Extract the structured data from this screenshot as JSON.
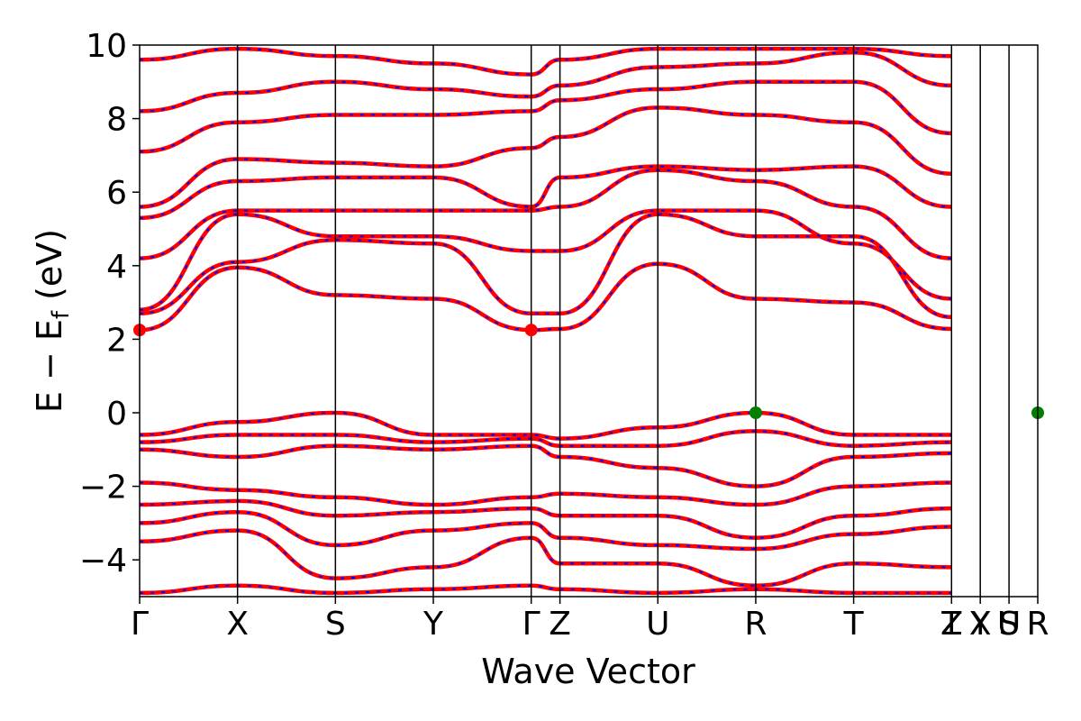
{
  "chart_data": {
    "type": "line",
    "xlabel": "Wave Vector",
    "ylabel_parts": {
      "main": "E − E",
      "sub": "f",
      "unit": " (eV)"
    },
    "ylim": [
      -5,
      10
    ],
    "yticks": [
      -4,
      -2,
      0,
      2,
      4,
      6,
      8,
      10
    ],
    "ytick_labels": [
      "−4",
      "−2",
      "0",
      "2",
      "4",
      "6",
      "8",
      "10"
    ],
    "xlim": [
      0,
      10
    ],
    "high_symmetry_points": [
      {
        "label": "Γ",
        "x": 0.0
      },
      {
        "label": "X",
        "x": 1.09
      },
      {
        "label": "S",
        "x": 2.18
      },
      {
        "label": "Y",
        "x": 3.27
      },
      {
        "label": "Γ",
        "x": 4.36
      },
      {
        "label": "Z",
        "x": 4.68
      },
      {
        "label": "U",
        "x": 5.77
      },
      {
        "label": "R",
        "x": 6.86
      },
      {
        "label": "T",
        "x": 7.95
      },
      {
        "label": "Z",
        "x": 9.04
      },
      {
        "label": "T",
        "x": 9.04
      },
      {
        "label": "Y",
        "x": 9.36
      },
      {
        "label": "X",
        "x": 9.36
      },
      {
        "label": "U",
        "x": 9.68
      },
      {
        "label": "S",
        "x": 9.68
      },
      {
        "label": "R",
        "x": 10.0
      }
    ],
    "grid": false,
    "legend": "none",
    "colors": {
      "band_primary": "#ff0000",
      "band_secondary": "#0000ff",
      "cbm_marker": "#ff0000",
      "vbm_marker": "#008000"
    },
    "markers": [
      {
        "name": "CBM",
        "x": 0.0,
        "y": 2.25,
        "color": "#ff0000"
      },
      {
        "name": "CBM",
        "x": 4.36,
        "y": 2.25,
        "color": "#ff0000"
      },
      {
        "name": "VBM",
        "x": 6.86,
        "y": 0.0,
        "color": "#008000"
      },
      {
        "name": "VBM",
        "x": 10.0,
        "y": 0.0,
        "color": "#008000"
      }
    ],
    "series": [
      {
        "values": [
          [
            0,
            2.25
          ],
          [
            1.09,
            3.95
          ],
          [
            2.18,
            3.2
          ],
          [
            3.27,
            3.1
          ],
          [
            4.36,
            2.25
          ],
          [
            4.68,
            2.28
          ],
          [
            5.77,
            4.05
          ],
          [
            6.86,
            3.1
          ],
          [
            7.95,
            3.0
          ],
          [
            9.04,
            2.28
          ]
        ]
      },
      {
        "values": [
          [
            0,
            2.7
          ],
          [
            1.09,
            4.1
          ],
          [
            2.18,
            4.7
          ],
          [
            3.27,
            4.6
          ],
          [
            4.36,
            2.7
          ],
          [
            4.68,
            2.7
          ],
          [
            5.77,
            5.4
          ],
          [
            6.86,
            4.8
          ],
          [
            7.95,
            4.8
          ],
          [
            9.04,
            2.6
          ]
        ]
      },
      {
        "values": [
          [
            0,
            2.8
          ],
          [
            1.09,
            5.4
          ],
          [
            2.18,
            4.8
          ],
          [
            3.27,
            4.8
          ],
          [
            4.36,
            4.4
          ],
          [
            4.68,
            4.4
          ],
          [
            5.77,
            5.5
          ],
          [
            6.86,
            5.5
          ],
          [
            7.95,
            4.6
          ],
          [
            9.04,
            3.1
          ]
        ]
      },
      {
        "values": [
          [
            0,
            4.2
          ],
          [
            1.09,
            5.5
          ],
          [
            2.18,
            5.5
          ],
          [
            3.27,
            5.5
          ],
          [
            4.36,
            5.5
          ],
          [
            4.68,
            5.6
          ],
          [
            5.77,
            6.6
          ],
          [
            6.86,
            6.3
          ],
          [
            7.95,
            5.6
          ],
          [
            9.04,
            4.2
          ]
        ]
      },
      {
        "values": [
          [
            0,
            5.3
          ],
          [
            1.09,
            6.3
          ],
          [
            2.18,
            6.4
          ],
          [
            3.27,
            6.4
          ],
          [
            4.36,
            5.6
          ],
          [
            4.68,
            6.4
          ],
          [
            5.77,
            6.7
          ],
          [
            6.86,
            6.6
          ],
          [
            7.95,
            6.7
          ],
          [
            9.04,
            5.6
          ]
        ]
      },
      {
        "values": [
          [
            0,
            5.6
          ],
          [
            1.09,
            6.9
          ],
          [
            2.18,
            6.8
          ],
          [
            3.27,
            6.7
          ],
          [
            4.36,
            7.2
          ],
          [
            4.68,
            7.5
          ],
          [
            5.77,
            8.3
          ],
          [
            6.86,
            8.1
          ],
          [
            7.95,
            7.9
          ],
          [
            9.04,
            6.5
          ]
        ]
      },
      {
        "values": [
          [
            0,
            7.1
          ],
          [
            1.09,
            7.9
          ],
          [
            2.18,
            8.1
          ],
          [
            3.27,
            8.1
          ],
          [
            4.36,
            8.2
          ],
          [
            4.68,
            8.5
          ],
          [
            5.77,
            8.8
          ],
          [
            6.86,
            9.0
          ],
          [
            7.95,
            9.0
          ],
          [
            9.04,
            7.6
          ]
        ]
      },
      {
        "values": [
          [
            0,
            8.2
          ],
          [
            1.09,
            8.7
          ],
          [
            2.18,
            9.0
          ],
          [
            3.27,
            8.8
          ],
          [
            4.36,
            8.6
          ],
          [
            4.68,
            8.9
          ],
          [
            5.77,
            9.4
          ],
          [
            6.86,
            9.5
          ],
          [
            7.95,
            9.8
          ],
          [
            9.04,
            8.9
          ]
        ]
      },
      {
        "values": [
          [
            0,
            9.6
          ],
          [
            1.09,
            9.9
          ],
          [
            2.18,
            9.7
          ],
          [
            3.27,
            9.5
          ],
          [
            4.36,
            9.2
          ],
          [
            4.68,
            9.6
          ],
          [
            5.77,
            9.9
          ],
          [
            6.86,
            9.9
          ],
          [
            7.95,
            9.9
          ],
          [
            9.04,
            9.7
          ]
        ]
      },
      {
        "values": [
          [
            0,
            -0.6
          ],
          [
            1.09,
            -0.25
          ],
          [
            2.18,
            0.0
          ],
          [
            3.27,
            -0.6
          ],
          [
            4.36,
            -0.6
          ],
          [
            4.68,
            -0.7
          ],
          [
            5.77,
            -0.4
          ],
          [
            6.86,
            0.0
          ],
          [
            7.95,
            -0.6
          ],
          [
            9.04,
            -0.6
          ]
        ]
      },
      {
        "values": [
          [
            0,
            -0.8
          ],
          [
            1.09,
            -0.6
          ],
          [
            2.18,
            -0.6
          ],
          [
            3.27,
            -0.8
          ],
          [
            4.36,
            -0.7
          ],
          [
            4.68,
            -0.9
          ],
          [
            5.77,
            -0.9
          ],
          [
            6.86,
            -0.5
          ],
          [
            7.95,
            -0.9
          ],
          [
            9.04,
            -0.8
          ]
        ]
      },
      {
        "values": [
          [
            0,
            -1.0
          ],
          [
            1.09,
            -1.2
          ],
          [
            2.18,
            -0.9
          ],
          [
            3.27,
            -1.0
          ],
          [
            4.36,
            -0.9
          ],
          [
            4.68,
            -1.2
          ],
          [
            5.77,
            -1.5
          ],
          [
            6.86,
            -2.0
          ],
          [
            7.95,
            -1.2
          ],
          [
            9.04,
            -1.1
          ]
        ]
      },
      {
        "values": [
          [
            0,
            -1.9
          ],
          [
            1.09,
            -2.1
          ],
          [
            2.18,
            -2.3
          ],
          [
            3.27,
            -2.5
          ],
          [
            4.36,
            -2.3
          ],
          [
            4.68,
            -2.2
          ],
          [
            5.77,
            -2.3
          ],
          [
            6.86,
            -2.5
          ],
          [
            7.95,
            -2.0
          ],
          [
            9.04,
            -1.9
          ]
        ]
      },
      {
        "values": [
          [
            0,
            -2.5
          ],
          [
            1.09,
            -2.4
          ],
          [
            2.18,
            -2.8
          ],
          [
            3.27,
            -2.7
          ],
          [
            4.36,
            -2.6
          ],
          [
            4.68,
            -2.8
          ],
          [
            5.77,
            -2.8
          ],
          [
            6.86,
            -3.4
          ],
          [
            7.95,
            -2.8
          ],
          [
            9.04,
            -2.6
          ]
        ]
      },
      {
        "values": [
          [
            0,
            -3.0
          ],
          [
            1.09,
            -2.7
          ],
          [
            2.18,
            -3.6
          ],
          [
            3.27,
            -3.2
          ],
          [
            4.36,
            -3.0
          ],
          [
            4.68,
            -3.4
          ],
          [
            5.77,
            -3.6
          ],
          [
            6.86,
            -3.7
          ],
          [
            7.95,
            -3.3
          ],
          [
            9.04,
            -3.1
          ]
        ]
      },
      {
        "values": [
          [
            0,
            -3.5
          ],
          [
            1.09,
            -3.2
          ],
          [
            2.18,
            -4.5
          ],
          [
            3.27,
            -4.2
          ],
          [
            4.36,
            -3.4
          ],
          [
            4.68,
            -4.1
          ],
          [
            5.77,
            -4.1
          ],
          [
            6.86,
            -4.7
          ],
          [
            7.95,
            -4.1
          ],
          [
            9.04,
            -4.2
          ]
        ]
      },
      {
        "values": [
          [
            0,
            -4.9
          ],
          [
            1.09,
            -4.7
          ],
          [
            2.18,
            -4.9
          ],
          [
            3.27,
            -4.8
          ],
          [
            4.36,
            -4.7
          ],
          [
            4.68,
            -4.8
          ],
          [
            5.77,
            -4.9
          ],
          [
            6.86,
            -4.8
          ],
          [
            7.95,
            -4.9
          ],
          [
            9.04,
            -4.9
          ]
        ]
      }
    ]
  }
}
